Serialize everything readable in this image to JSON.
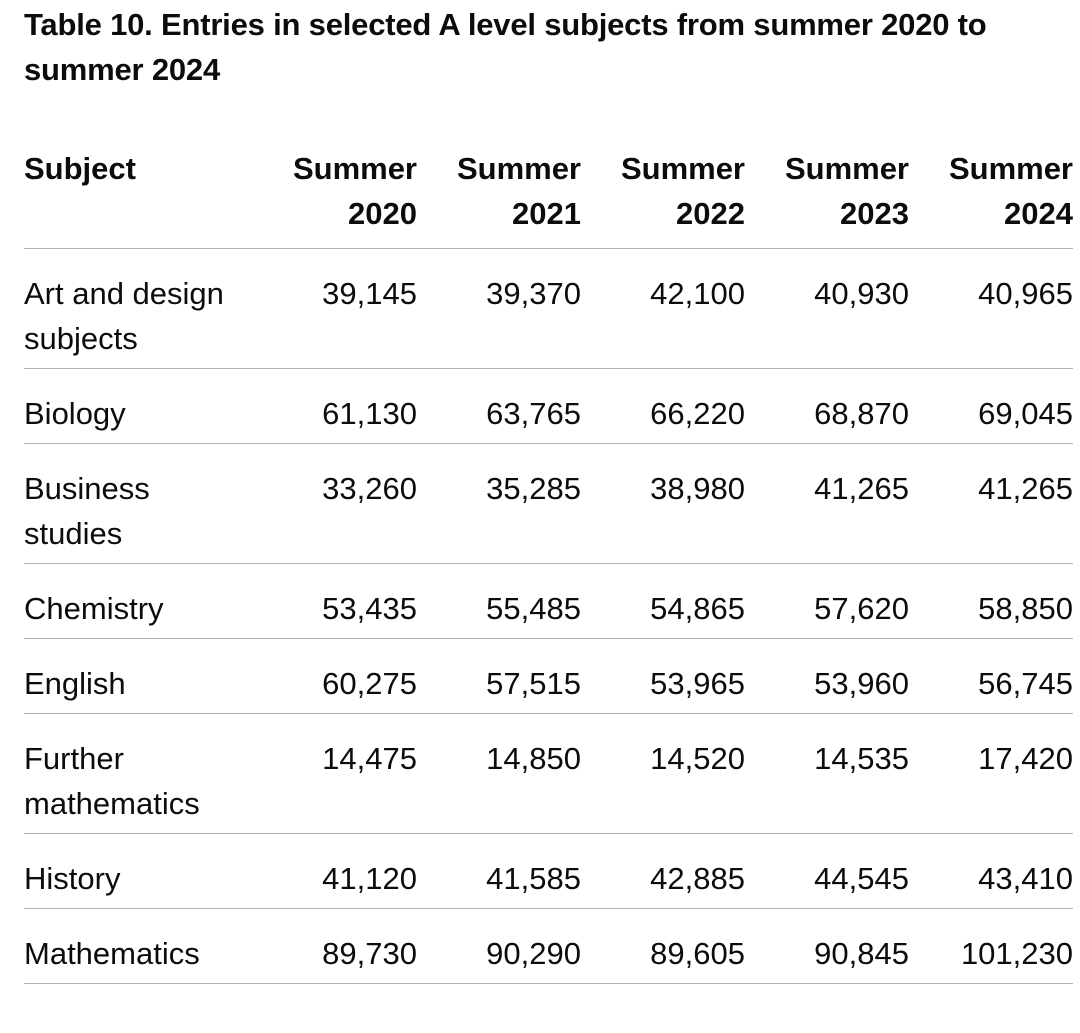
{
  "caption": "Table 10. Entries in selected A level subjects from summer 2020 to summer 2024",
  "table": {
    "headers": {
      "subject": "Subject",
      "years": [
        [
          "Summer",
          "2020"
        ],
        [
          "Summer",
          "2021"
        ],
        [
          "Summer",
          "2022"
        ],
        [
          "Summer",
          "2023"
        ],
        [
          "Summer",
          "2024"
        ]
      ]
    },
    "rows": [
      {
        "subject": "Art and design subjects",
        "values": [
          "39,145",
          "39,370",
          "42,100",
          "40,930",
          "40,965"
        ]
      },
      {
        "subject": "Biology",
        "values": [
          "61,130",
          "63,765",
          "66,220",
          "68,870",
          "69,045"
        ]
      },
      {
        "subject": "Business studies",
        "values": [
          "33,260",
          "35,285",
          "38,980",
          "41,265",
          "41,265"
        ]
      },
      {
        "subject": "Chemistry",
        "values": [
          "53,435",
          "55,485",
          "54,865",
          "57,620",
          "58,850"
        ]
      },
      {
        "subject": "English",
        "values": [
          "60,275",
          "57,515",
          "53,965",
          "53,960",
          "56,745"
        ]
      },
      {
        "subject": "Further mathematics",
        "values": [
          "14,475",
          "14,850",
          "14,520",
          "14,535",
          "17,420"
        ]
      },
      {
        "subject": "History",
        "values": [
          "41,120",
          "41,585",
          "42,885",
          "44,545",
          "43,410"
        ]
      },
      {
        "subject": "Mathematics",
        "values": [
          "89,730",
          "90,290",
          "89,605",
          "90,845",
          "101,230"
        ]
      }
    ]
  }
}
